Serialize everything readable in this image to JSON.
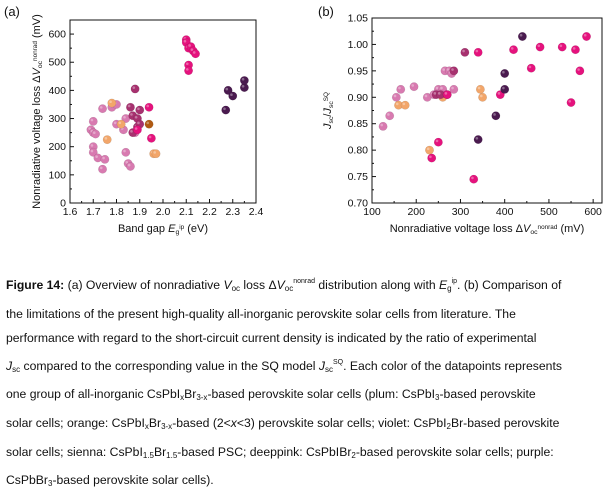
{
  "figure": {
    "panel_a_label": "(a)",
    "panel_b_label": "(b)"
  },
  "chart_data": [
    {
      "type": "scatter",
      "panel": "(a)",
      "xlabel": "Band gap E_g^ip (eV)",
      "ylabel": "Nonradiative voltage loss ΔV_oc^nonrad (mV)",
      "xlim": [
        1.6,
        2.4
      ],
      "ylim": [
        0,
        650
      ],
      "xticks": [
        1.6,
        1.7,
        1.8,
        1.9,
        2.0,
        2.1,
        2.2,
        2.3,
        2.4
      ],
      "yticks": [
        0,
        100,
        200,
        300,
        400,
        500,
        600
      ],
      "grid": false,
      "series": [
        {
          "color": "#d87ab0",
          "points": [
            [
              1.69,
              260
            ],
            [
              1.7,
              250
            ],
            [
              1.71,
              245
            ],
            [
              1.7,
              200
            ],
            [
              1.7,
              180
            ],
            [
              1.72,
              160
            ],
            [
              1.74,
              335
            ],
            [
              1.74,
              120
            ],
            [
              1.75,
              155
            ],
            [
              1.7,
              290
            ],
            [
              1.78,
              340
            ],
            [
              1.8,
              280
            ],
            [
              1.8,
              350
            ],
            [
              1.83,
              260
            ],
            [
              1.85,
              140
            ],
            [
              1.86,
              130
            ],
            [
              1.84,
              180
            ],
            [
              1.88,
              250
            ],
            [
              1.84,
              300
            ]
          ]
        },
        {
          "color": "#f2a66a",
          "points": [
            [
              1.76,
              225
            ],
            [
              1.78,
              355
            ],
            [
              1.82,
              280
            ],
            [
              1.96,
              175
            ],
            [
              1.97,
              175
            ]
          ]
        },
        {
          "color": "#a7316f",
          "points": [
            [
              1.86,
              340
            ],
            [
              1.87,
              310
            ],
            [
              1.88,
              405
            ],
            [
              1.89,
              300
            ],
            [
              1.89,
              270
            ],
            [
              1.9,
              330
            ],
            [
              1.9,
              280
            ],
            [
              1.87,
              250
            ]
          ]
        },
        {
          "color": "#b05a12",
          "points": [
            [
              1.94,
              280
            ]
          ]
        },
        {
          "color": "#e5127d",
          "points": [
            [
              1.89,
              260
            ],
            [
              1.94,
              340
            ],
            [
              1.95,
              230
            ],
            [
              2.1,
              580
            ],
            [
              2.1,
              570
            ],
            [
              2.11,
              550
            ],
            [
              2.12,
              555
            ],
            [
              2.13,
              540
            ],
            [
              2.14,
              530
            ],
            [
              2.11,
              490
            ],
            [
              2.11,
              470
            ]
          ]
        },
        {
          "color": "#4a1a4f",
          "points": [
            [
              2.27,
              330
            ],
            [
              2.28,
              400
            ],
            [
              2.3,
              380
            ],
            [
              2.35,
              410
            ],
            [
              2.35,
              435
            ]
          ]
        }
      ]
    },
    {
      "type": "scatter",
      "panel": "(b)",
      "xlabel": "Nonradiative voltage loss ΔV_oc^nonrad (mV)",
      "ylabel": "J_sc/J_sc^SQ",
      "xlim": [
        100,
        620
      ],
      "ylim": [
        0.7,
        1.05
      ],
      "xticks": [
        100,
        200,
        300,
        400,
        500,
        600
      ],
      "yticks": [
        0.7,
        0.75,
        0.8,
        0.85,
        0.9,
        0.95,
        1.0,
        1.05
      ],
      "yticklabels": [
        "0.70",
        "0.75",
        "0.80",
        "0.85",
        "0.90",
        "0.95",
        "1.00",
        "1.05"
      ],
      "grid": false,
      "series": [
        {
          "color": "#d87ab0",
          "points": [
            [
              125,
              0.845
            ],
            [
              140,
              0.865
            ],
            [
              155,
              0.9
            ],
            [
              165,
              0.915
            ],
            [
              195,
              0.92
            ],
            [
              225,
              0.9
            ],
            [
              240,
              0.905
            ],
            [
              250,
              0.915
            ],
            [
              260,
              0.915
            ],
            [
              265,
              0.95
            ],
            [
              275,
              0.95
            ],
            [
              280,
              0.945
            ],
            [
              285,
              0.915
            ]
          ]
        },
        {
          "color": "#f2a66a",
          "points": [
            [
              160,
              0.885
            ],
            [
              175,
              0.885
            ],
            [
              230,
              0.8
            ],
            [
              260,
              0.9
            ],
            [
              350,
              0.9
            ],
            [
              345,
              0.915
            ]
          ]
        },
        {
          "color": "#a7316f",
          "points": [
            [
              245,
              0.905
            ],
            [
              255,
              0.905
            ],
            [
              270,
              0.905
            ],
            [
              285,
              0.95
            ],
            [
              310,
              0.985
            ]
          ]
        },
        {
          "color": "#e5127d",
          "points": [
            [
              235,
              0.785
            ],
            [
              250,
              0.815
            ],
            [
              270,
              0.905
            ],
            [
              330,
              0.745
            ],
            [
              340,
              0.985
            ],
            [
              390,
              0.905
            ],
            [
              420,
              0.99
            ],
            [
              460,
              0.955
            ],
            [
              480,
              0.995
            ],
            [
              530,
              0.995
            ],
            [
              550,
              0.89
            ],
            [
              570,
              0.95
            ],
            [
              585,
              1.015
            ],
            [
              560,
              0.99
            ]
          ]
        },
        {
          "color": "#4a1a4f",
          "points": [
            [
              340,
              0.82
            ],
            [
              380,
              0.865
            ],
            [
              400,
              0.915
            ],
            [
              400,
              0.945
            ],
            [
              440,
              1.015
            ]
          ]
        }
      ]
    }
  ],
  "caption": {
    "figure_label": "Figure 14:",
    "lines": [
      "(a) Overview of nonradiative V_oc loss ΔV_oc^nonrad distribution along with E_g^ip. (b) Comparison of",
      "the limitations of the present high-quality all-inorganic perovskite solar cells from literature. The",
      "performance with regard to the short-circuit current density is indicated by the ratio of experimental",
      "J_sc compared to the corresponding value in the SQ model J_sc^SQ. Each color of the datapoints represents",
      "one group of all-inorganic CsPbI_xBr_3-x-based perovskite solar cells (plum: CsPbI_3-based perovskite",
      "solar cells; orange: CsPbI_xBr_3-x-based (2<x<3) perovskite solar cells; violet: CsPbI_2Br-based perovskite",
      "solar cells; sienna: CsPbI_1.5Br_1.5-based PSC; deeppink: CsPbIBr_2-based perovskite solar cells; purple:",
      "CsPbBr_3-based perovskite solar cells)."
    ]
  }
}
